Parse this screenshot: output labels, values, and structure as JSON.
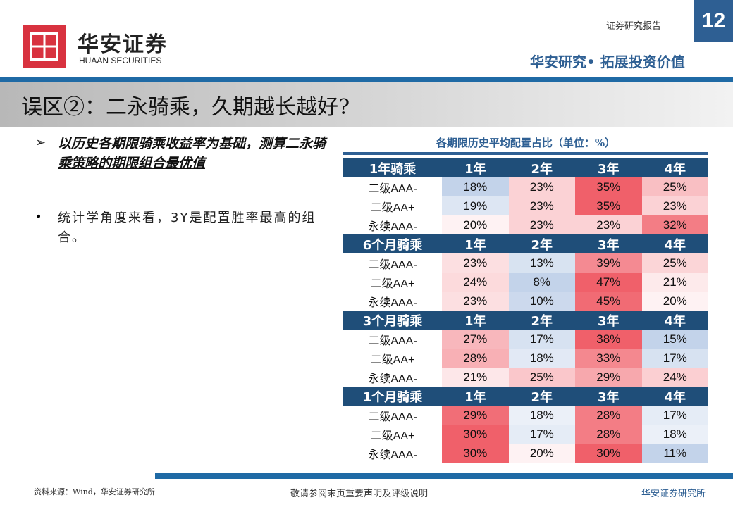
{
  "header": {
    "brand_cn": "华安证券",
    "brand_en": "HUAAN SECURITIES",
    "report_label": "证券研究报告",
    "page_number": "12",
    "slogan": "华安研究• 拓展投资价值"
  },
  "title": "误区②：二永骑乘，久期越长越好?",
  "bullets": [
    {
      "marker": "➢",
      "text": "以历史各期限骑乘收益率为基础，测算二永骑乘策略的期限组合最优值"
    },
    {
      "marker": "•",
      "text": "统计学角度来看，3Y是配置胜率最高的组合。"
    }
  ],
  "table": {
    "title": "各期限历史平均配置占比（单位：%）",
    "blocks": [
      {
        "header": [
          "1年骑乘",
          "1年",
          "2年",
          "3年",
          "4年"
        ],
        "rows": [
          [
            "二级AAA-",
            18,
            23,
            35,
            25
          ],
          [
            "二级AA+",
            19,
            23,
            35,
            23
          ],
          [
            "永续AAA-",
            20,
            23,
            23,
            32
          ]
        ]
      },
      {
        "header": [
          "6个月骑乘",
          "1年",
          "2年",
          "3年",
          "4年"
        ],
        "rows": [
          [
            "二级AAA-",
            23,
            13,
            39,
            25
          ],
          [
            "二级AA+",
            24,
            8,
            47,
            21
          ],
          [
            "永续AAA-",
            23,
            10,
            45,
            20
          ]
        ]
      },
      {
        "header": [
          "3个月骑乘",
          "1年",
          "2年",
          "3年",
          "4年"
        ],
        "rows": [
          [
            "二级AAA-",
            27,
            17,
            38,
            15
          ],
          [
            "二级AA+",
            28,
            18,
            33,
            17
          ],
          [
            "永续AAA-",
            21,
            25,
            29,
            24
          ]
        ]
      },
      {
        "header": [
          "1个月骑乘",
          "1年",
          "2年",
          "3年",
          "4年"
        ],
        "rows": [
          [
            "二级AAA-",
            29,
            18,
            28,
            17
          ],
          [
            "二级AA+",
            30,
            17,
            28,
            18
          ],
          [
            "永续AAA-",
            30,
            20,
            30,
            11
          ]
        ]
      }
    ],
    "colors": {
      "high": "#f0606a",
      "low": "#c3d3ea",
      "header": "#1f4e79"
    }
  },
  "footer": {
    "source": "资料来源：Wind，华安证券研究所",
    "disclaimer": "敬请参阅末页重要声明及评级说明",
    "org": "华安证券研究所"
  }
}
